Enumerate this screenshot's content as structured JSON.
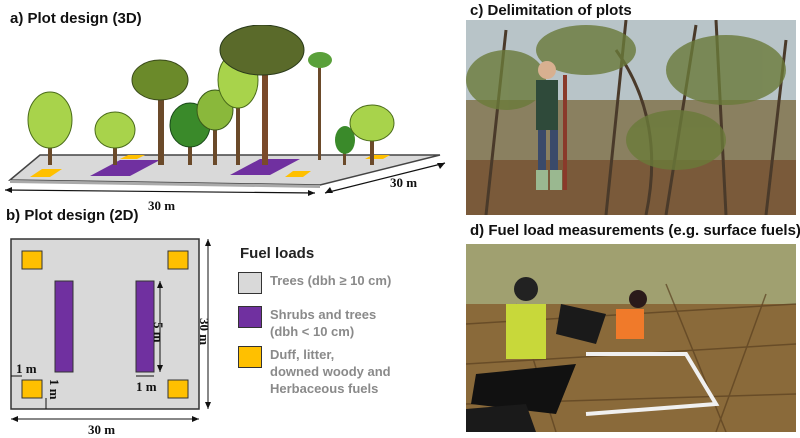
{
  "panels": {
    "a": {
      "title": "a) Plot design (3D)",
      "dim_length": "30 m",
      "dim_width": "30 m"
    },
    "b": {
      "title": "b) Plot design (2D)",
      "dim_bottom": "30 m",
      "dim_right": "30 m",
      "dim_strip": "5 m",
      "dim_gap_h": "1 m",
      "dim_gap_v": "1 m",
      "dim_gap_h2": "1 m"
    },
    "c": {
      "title": "c) Delimitation of plots"
    },
    "d": {
      "title": "d) Fuel load measurements (e.g. surface fuels)"
    }
  },
  "legend": {
    "title": "Fuel loads",
    "items": [
      {
        "label": "Trees (dbh ≥ 10 cm)",
        "color": "#d9d9d9"
      },
      {
        "label": "Shrubs and trees\n(dbh < 10 cm)",
        "color": "#7030a0"
      },
      {
        "label": "Duff, litter,\ndowned woody and\nHerbaceous fuels",
        "color": "#ffc000"
      }
    ]
  },
  "colors": {
    "plot_gray": "#d9d9d9",
    "shrub_purple": "#7030a0",
    "duff_yellow": "#ffc000"
  }
}
